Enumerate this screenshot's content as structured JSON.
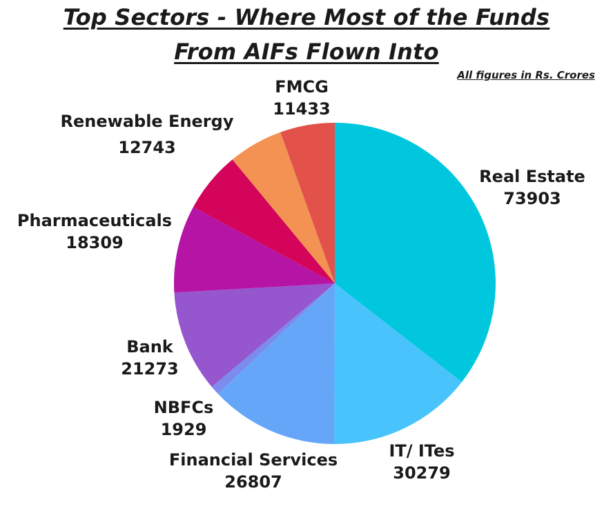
{
  "chart_data": {
    "type": "pie",
    "title_line1": "Top Sectors - Where Most of the Funds",
    "title_line2": "From AIFs Flown Into ",
    "note": "All figures in Rs. Crores",
    "slices": [
      {
        "label": "Real Estate",
        "value": 73903,
        "color": "#00C7DE"
      },
      {
        "label": "IT/ ITes",
        "value": 30279,
        "color": "#48C3FC"
      },
      {
        "label": "Financial Services",
        "value": 26807,
        "color": "#66A6F8"
      },
      {
        "label": "NBFCs",
        "value": 1929,
        "color": "#7B8BEE"
      },
      {
        "label": "Bank",
        "value": 21273,
        "color": "#9656CE"
      },
      {
        "label": "Pharmaceuticals",
        "value": 18309,
        "color": "#B514A4"
      },
      {
        "label": "Renewable Energy",
        "value": 12743,
        "color": "#D3045A"
      },
      {
        "label": "FMCG",
        "value": 11433,
        "color": "#F39253"
      },
      {
        "label": "",
        "value": 11433,
        "color": "#E2524A"
      }
    ]
  }
}
